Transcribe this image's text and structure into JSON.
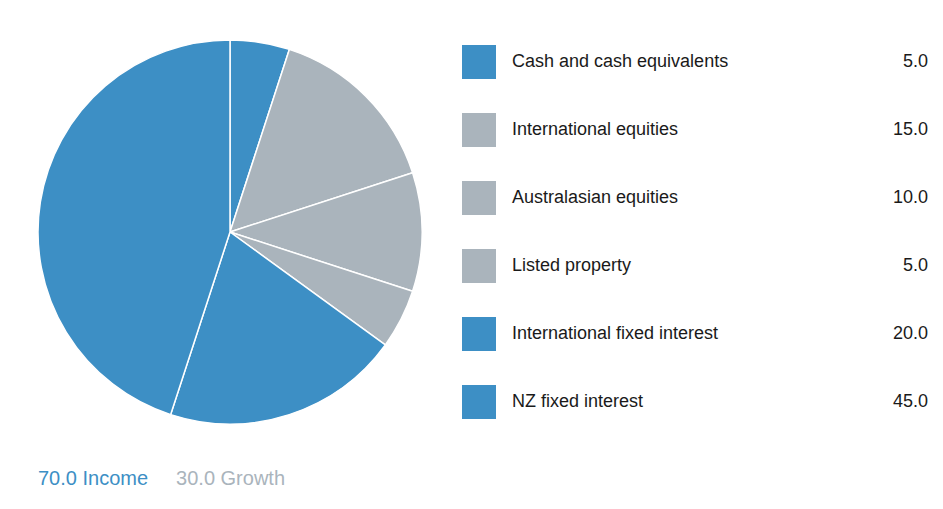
{
  "chart_data": {
    "type": "pie",
    "categories": [
      "Cash and cash equivalents",
      "International equities",
      "Australasian equities",
      "Listed property",
      "International fixed interest",
      "NZ fixed interest"
    ],
    "values": [
      5.0,
      15.0,
      10.0,
      5.0,
      20.0,
      45.0
    ],
    "value_labels": [
      "5.0",
      "15.0",
      "10.0",
      "5.0",
      "20.0",
      "45.0"
    ],
    "colors": [
      "#3d8fc5",
      "#aab4bc",
      "#aab4bc",
      "#aab4bc",
      "#3d8fc5",
      "#3d8fc5"
    ],
    "annotations": [
      {
        "text": "70.0 Income",
        "color": "#3d8fc5"
      },
      {
        "text": "30.0 Growth",
        "color": "#aab4bc"
      }
    ]
  }
}
